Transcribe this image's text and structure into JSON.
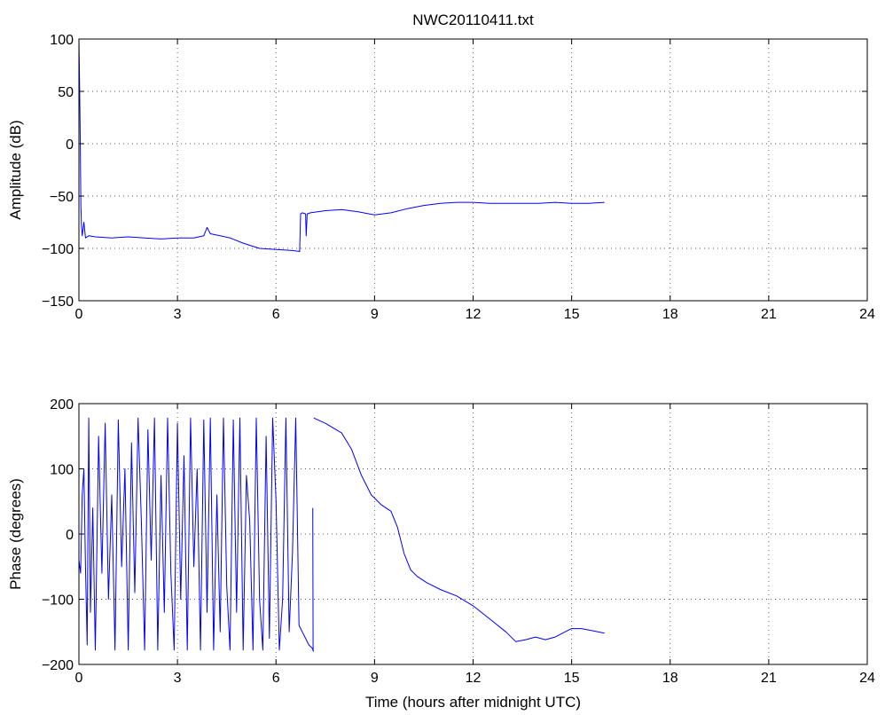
{
  "chart_data": [
    {
      "type": "line",
      "title": "NWC20110411.txt",
      "xlabel": "",
      "ylabel": "Amplitude (dB)",
      "xlim": [
        0,
        24
      ],
      "ylim": [
        -150,
        100
      ],
      "xticks": [
        "0",
        "3",
        "6",
        "9",
        "12",
        "15",
        "18",
        "21",
        "24"
      ],
      "yticks": [
        "100",
        "50",
        "0",
        "-50",
        "-100",
        "-150"
      ],
      "grid": true,
      "series_color": "#0000ff",
      "series": [
        {
          "x": [
            0.0,
            0.02,
            0.04,
            0.06,
            0.08,
            0.1,
            0.15,
            0.2,
            0.3,
            0.5,
            1.0,
            1.5,
            2.0,
            2.5,
            3.0,
            3.5,
            3.8,
            3.9,
            4.0,
            4.3,
            4.6,
            5.0,
            5.5,
            6.0,
            6.5,
            6.72,
            6.75,
            6.8,
            6.9,
            6.92,
            6.95,
            7.05,
            7.5,
            8.0,
            8.5,
            9.0,
            9.5,
            10.0,
            10.5,
            11.0,
            11.5,
            12.0,
            12.5,
            13.0,
            13.5,
            14.0,
            14.5,
            15.0,
            15.5,
            16.0
          ],
          "y": [
            100,
            60,
            5,
            -60,
            -80,
            -88,
            -75,
            -90,
            -88,
            -89,
            -90,
            -89,
            -90,
            -91,
            -90,
            -90,
            -88,
            -80,
            -86,
            -88,
            -90,
            -95,
            -100,
            -101,
            -102,
            -103,
            -67,
            -66,
            -67,
            -88,
            -67,
            -66,
            -64,
            -63,
            -65,
            -68,
            -66,
            -62,
            -59,
            -57,
            -56,
            -56,
            -57,
            -57,
            -57,
            -57,
            -56,
            -57,
            -57,
            -56
          ]
        }
      ]
    },
    {
      "type": "line",
      "title": "",
      "xlabel": "Time (hours after midnight UTC)",
      "ylabel": "Phase (degrees)",
      "xlim": [
        0,
        24
      ],
      "ylim": [
        -200,
        200
      ],
      "xticks": [
        "0",
        "3",
        "6",
        "9",
        "12",
        "15",
        "18",
        "21",
        "24"
      ],
      "yticks": [
        "200",
        "100",
        "0",
        "-100",
        "-200"
      ],
      "grid": true,
      "series_color": "#0000ff",
      "series": [
        {
          "x": [
            0.0,
            0.05,
            0.1,
            0.15,
            0.2,
            0.25,
            0.3,
            0.35,
            0.42,
            0.5,
            0.6,
            0.7,
            0.8,
            0.9,
            1.0,
            1.1,
            1.2,
            1.3,
            1.4,
            1.5,
            1.6,
            1.7,
            1.8,
            1.9,
            2.0,
            2.1,
            2.2,
            2.3,
            2.4,
            2.5,
            2.6,
            2.7,
            2.8,
            2.9,
            3.0,
            3.1,
            3.2,
            3.3,
            3.4,
            3.5,
            3.6,
            3.7,
            3.8,
            3.9,
            4.0,
            4.1,
            4.2,
            4.3,
            4.4,
            4.5,
            4.6,
            4.7,
            4.8,
            4.9,
            5.0,
            5.1,
            5.2,
            5.3,
            5.4,
            5.5,
            5.6,
            5.7,
            5.8,
            5.9,
            6.0,
            6.1,
            6.2,
            6.3,
            6.4,
            6.5,
            6.6,
            6.7,
            6.75,
            6.8,
            6.9,
            7.0,
            7.1,
            7.15
          ],
          "y": [
            -40,
            -60,
            60,
            100,
            -50,
            -170,
            178,
            -120,
            40,
            -178,
            150,
            -60,
            170,
            -100,
            60,
            -178,
            175,
            -50,
            100,
            -178,
            140,
            -90,
            178,
            20,
            -178,
            160,
            -40,
            178,
            -178,
            90,
            -120,
            178,
            -60,
            -178,
            170,
            -100,
            120,
            -178,
            178,
            -50,
            100,
            -178,
            175,
            -120,
            178,
            -178,
            60,
            -150,
            178,
            -80,
            -178,
            175,
            -120,
            178,
            -178,
            90,
            20,
            -178,
            178,
            -100,
            -178,
            150,
            -160,
            178,
            50,
            -178,
            -100,
            178,
            -150,
            -30,
            178,
            -140,
            -145,
            -150,
            -160,
            -170,
            -175,
            -180
          ]
        },
        {
          "x": [
            7.12,
            7.13
          ],
          "y": [
            40,
            -180
          ]
        },
        {
          "x": [
            7.15,
            7.5,
            8.0,
            8.3,
            8.6,
            8.9,
            9.2,
            9.5,
            9.7,
            9.9,
            10.1,
            10.3,
            10.6,
            11.0,
            11.5,
            12.0,
            12.5,
            13.0,
            13.3,
            13.6,
            13.9,
            14.2,
            14.5,
            14.8,
            15.0,
            15.3,
            15.6,
            16.0
          ],
          "y": [
            178,
            170,
            155,
            130,
            90,
            60,
            45,
            35,
            10,
            -30,
            -55,
            -65,
            -75,
            -85,
            -95,
            -110,
            -130,
            -150,
            -165,
            -162,
            -158,
            -162,
            -158,
            -150,
            -145,
            -145,
            -148,
            -152
          ]
        }
      ]
    }
  ]
}
